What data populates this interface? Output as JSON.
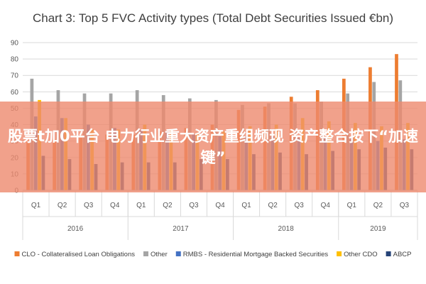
{
  "chart_data": {
    "type": "bar",
    "title": "Chart 3: Top 5 FVC Activity types (Total Debt Securities Issued €bn)",
    "ylim": [
      0,
      90
    ],
    "yticks": [
      0,
      10,
      20,
      30,
      40,
      50,
      60,
      70,
      80,
      90
    ],
    "grid": true,
    "legend_position": "bottom",
    "categories": [
      "Q1",
      "Q2",
      "Q3",
      "Q4",
      "Q1",
      "Q2",
      "Q3",
      "Q4",
      "Q1",
      "Q2",
      "Q3",
      "Q4",
      "Q1",
      "Q2",
      "Q3"
    ],
    "years": [
      {
        "label": "2016",
        "count": 4
      },
      {
        "label": "2017",
        "count": 4
      },
      {
        "label": "2018",
        "count": 4
      },
      {
        "label": "2019",
        "count": 3
      }
    ],
    "series": [
      {
        "name": "CLO - Collateralised Loan Obligations",
        "color": "#ED7D31",
        "values": [
          30,
          31,
          32,
          34,
          34,
          36,
          38,
          40,
          49,
          51,
          57,
          61,
          68,
          75,
          83
        ]
      },
      {
        "name": "Other",
        "color": "#A5A5A5",
        "values": [
          68,
          61,
          59,
          59,
          61,
          58,
          56,
          55,
          52,
          53,
          53,
          54,
          59,
          66,
          67
        ]
      },
      {
        "name": "RMBS - Residential Mortgage Backed Securities",
        "color": "#4472C4",
        "values": [
          45,
          44,
          40,
          38,
          37,
          36,
          34,
          33,
          33,
          33,
          32,
          32,
          32,
          30,
          31
        ]
      },
      {
        "name": "Other CDO",
        "color": "#FFC000",
        "values": [
          55,
          44,
          37,
          37,
          40,
          37,
          35,
          36,
          39,
          40,
          44,
          42,
          41,
          39,
          41
        ]
      },
      {
        "name": "ABCP",
        "color": "#264478",
        "values": [
          21,
          19,
          16,
          17,
          17,
          17,
          19,
          19,
          22,
          23,
          22,
          24,
          25,
          26,
          25
        ]
      }
    ]
  },
  "overlay": {
    "text": "股票t加0平台 电力行业重大资产重组频现 资产整合按下“加速键”"
  }
}
